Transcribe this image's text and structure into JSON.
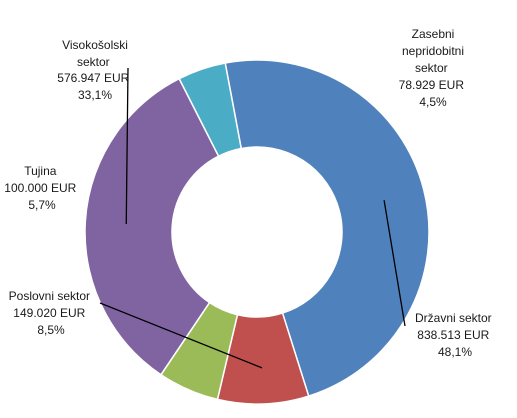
{
  "chart_data": {
    "type": "pie",
    "donut": true,
    "title": "",
    "legend": "none",
    "slices": [
      {
        "key": "drzavni",
        "name": "Državni sektor",
        "value": 838513,
        "value_label": "838.513 EUR",
        "percent_label": "48,1%",
        "color": "#4F81BD"
      },
      {
        "key": "poslovni",
        "name": "Poslovni sektor",
        "value": 149020,
        "value_label": "149.020 EUR",
        "percent_label": "8,5%",
        "color": "#C0504D"
      },
      {
        "key": "tujina",
        "name": "Tujina",
        "value": 100000,
        "value_label": "100.000 EUR",
        "percent_label": "5,7%",
        "color": "#9BBB59"
      },
      {
        "key": "visokosolski",
        "name": "Visokošolski sektor",
        "value": 576947,
        "value_label": "576.947 EUR",
        "percent_label": "33,1%",
        "color": "#8064A2"
      },
      {
        "key": "zasebni",
        "name": "Zasebni nepridobitni sektor",
        "value": 78929,
        "value_label": "78.929 EUR",
        "percent_label": "4,5%",
        "color": "#4BACC6"
      }
    ]
  }
}
